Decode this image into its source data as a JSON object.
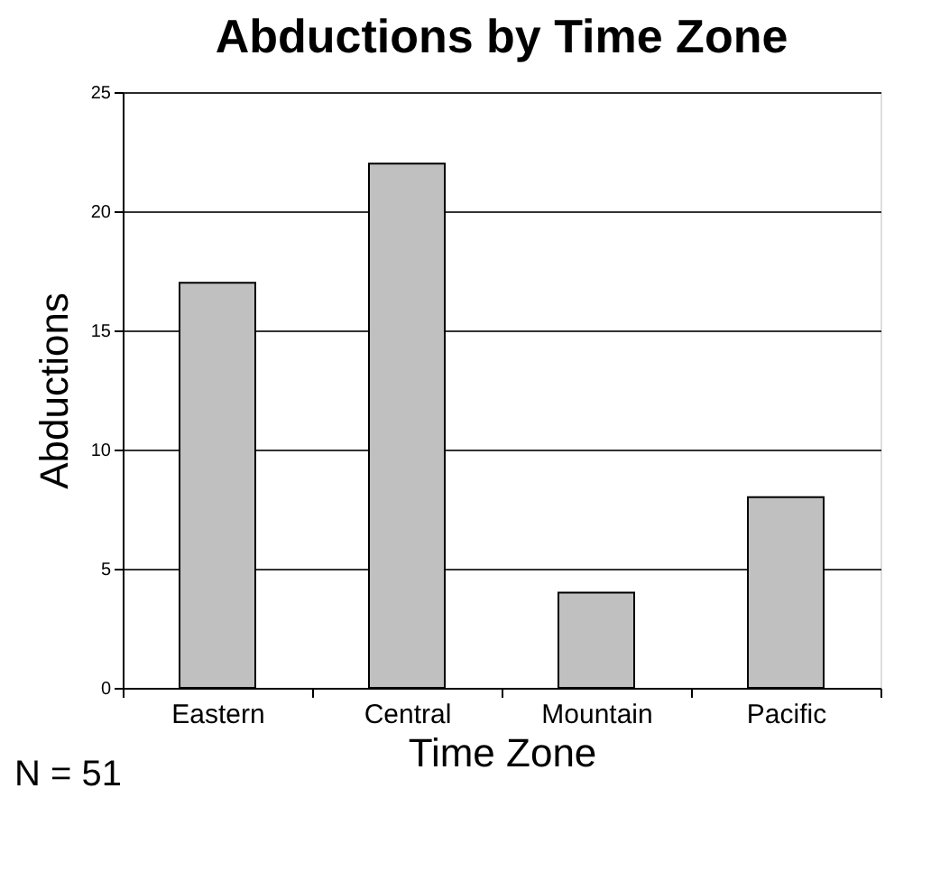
{
  "chart_data": {
    "type": "bar",
    "title": "Abductions by Time Zone",
    "xlabel": "Time Zone",
    "ylabel": "Abductions",
    "categories": [
      "Eastern",
      "Central",
      "Mountain",
      "Pacific"
    ],
    "values": [
      17,
      22,
      4,
      8
    ],
    "color": "#c0c0c0",
    "ylim": [
      0,
      25
    ],
    "yticks": [
      0,
      5,
      10,
      15,
      20,
      25
    ],
    "grid": "y",
    "annotations": [
      "N = 51"
    ]
  }
}
